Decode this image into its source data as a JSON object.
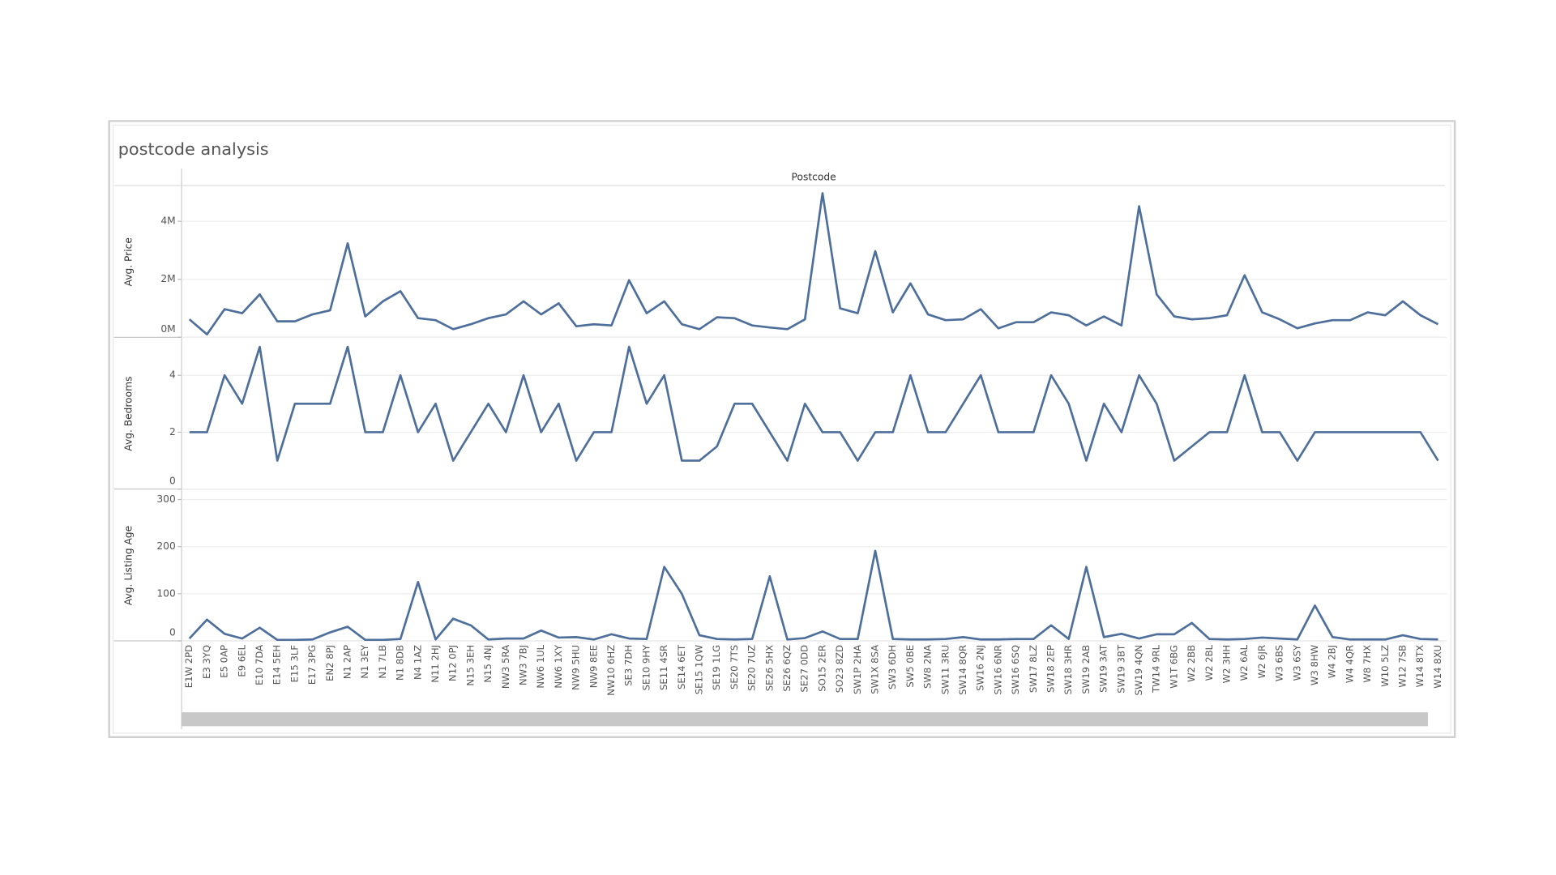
{
  "chart_data": {
    "type": "line",
    "title": "postcode analysis",
    "x_label": "Postcode",
    "categories": [
      "E1W 2PD",
      "E3 3YQ",
      "E5 0AP",
      "E9 6EL",
      "E10 7DA",
      "E14 5EH",
      "E15 3LF",
      "E17 3PG",
      "EN2 8PJ",
      "N1 2AP",
      "N1 3EY",
      "N1 7LB",
      "N1 8DB",
      "N4 1AZ",
      "N11 2HJ",
      "N12 0PJ",
      "N15 3EH",
      "N15 4NJ",
      "NW3 5RA",
      "NW3 7BJ",
      "NW6 1UL",
      "NW6 1XY",
      "NW9 5HU",
      "NW9 8EE",
      "NW10 6HZ",
      "SE3 7DH",
      "SE10 9HY",
      "SE11 4SR",
      "SE14 6ET",
      "SE15 1QW",
      "SE19 1LG",
      "SE20 7TS",
      "SE20 7UZ",
      "SE26 5HX",
      "SE26 6QZ",
      "SE27 0DD",
      "SO15 2ER",
      "SO23 8ZD",
      "SW1P 2HA",
      "SW1X 8SA",
      "SW3 6DH",
      "SW5 0BE",
      "SW8 2NA",
      "SW11 3RU",
      "SW14 8QR",
      "SW16 2NJ",
      "SW16 6NR",
      "SW16 6SQ",
      "SW17 8LZ",
      "SW18 2EP",
      "SW18 3HR",
      "SW19 2AB",
      "SW19 3AT",
      "SW19 3BT",
      "SW19 4QN",
      "TW14 9RL",
      "W1T 6BG",
      "W2 2BB",
      "W2 2BL",
      "W2 3HH",
      "W2 6AL",
      "W2 6JR",
      "W3 6BS",
      "W3 6SY",
      "W3 8HW",
      "W4 2BJ",
      "W4 4QR",
      "W8 7HX",
      "W10 5LZ",
      "W12 7SB",
      "W14 8TX",
      "W14 8XU"
    ],
    "grid": true,
    "panels": [
      {
        "y_label": "Avg. Price",
        "ylim": [
          0,
          5200000
        ],
        "yticks": [
          {
            "value": 0,
            "label": "0M"
          },
          {
            "value": 2000000,
            "label": "2M"
          },
          {
            "value": 4000000,
            "label": "4M"
          }
        ],
        "series": [
          {
            "color": "#4e6f9b",
            "values": [
              620000,
              100000,
              970000,
              830000,
              1480000,
              550000,
              550000,
              790000,
              930000,
              3240000,
              720000,
              1240000,
              1590000,
              660000,
              590000,
              280000,
              450000,
              660000,
              790000,
              1240000,
              790000,
              1170000,
              380000,
              450000,
              410000,
              1970000,
              830000,
              1240000,
              450000,
              280000,
              690000,
              660000,
              410000,
              340000,
              280000,
              620000,
              4970000,
              1000000,
              830000,
              2970000,
              860000,
              1860000,
              790000,
              590000,
              620000,
              970000,
              310000,
              520000,
              520000,
              860000,
              760000,
              410000,
              720000,
              410000,
              4520000,
              1480000,
              720000,
              620000,
              660000,
              760000,
              2140000,
              860000,
              620000,
              310000,
              480000,
              590000,
              590000,
              860000,
              760000,
              1240000,
              760000,
              450000
            ]
          }
        ]
      },
      {
        "y_label": "Avg. Bedrooms",
        "ylim": [
          0,
          5.3
        ],
        "yticks": [
          0,
          2,
          4
        ],
        "series": [
          {
            "color": "#4e6f9b",
            "values": [
              2,
              2,
              4,
              3,
              5,
              1,
              3,
              3,
              3,
              5,
              2,
              2,
              4,
              2,
              3,
              1,
              2,
              3,
              2,
              4,
              2,
              3,
              1,
              2,
              2,
              5,
              3,
              4,
              1,
              1,
              1.5,
              3,
              3,
              2,
              1,
              3,
              2,
              2,
              1,
              2,
              2,
              4,
              2,
              2,
              3,
              4,
              2,
              2,
              2,
              4,
              3,
              1,
              3,
              2,
              4,
              3,
              1,
              1.5,
              2,
              2,
              4,
              2,
              2,
              1,
              2,
              2,
              2,
              2,
              2,
              2,
              2,
              1
            ]
          }
        ]
      },
      {
        "y_label": "Avg. Listing Age",
        "ylim": [
          0,
          320
        ],
        "yticks": [
          0,
          100,
          200,
          300
        ],
        "series": [
          {
            "color": "#4e6f9b",
            "values": [
              5,
              45,
              15,
              5,
              28,
              2,
              2,
              3,
              18,
              30,
              2,
              2,
              4,
              125,
              3,
              47,
              33,
              3,
              5,
              5,
              22,
              7,
              8,
              3,
              14,
              5,
              4,
              157,
              100,
              12,
              4,
              3,
              4,
              137,
              3,
              6,
              20,
              4,
              4,
              191,
              4,
              3,
              3,
              4,
              8,
              3,
              3,
              4,
              4,
              33,
              4,
              157,
              8,
              15,
              5,
              14,
              14,
              38,
              4,
              3,
              4,
              7,
              5,
              3,
              75,
              8,
              3,
              3,
              3,
              12,
              4,
              3
            ]
          }
        ]
      }
    ]
  }
}
